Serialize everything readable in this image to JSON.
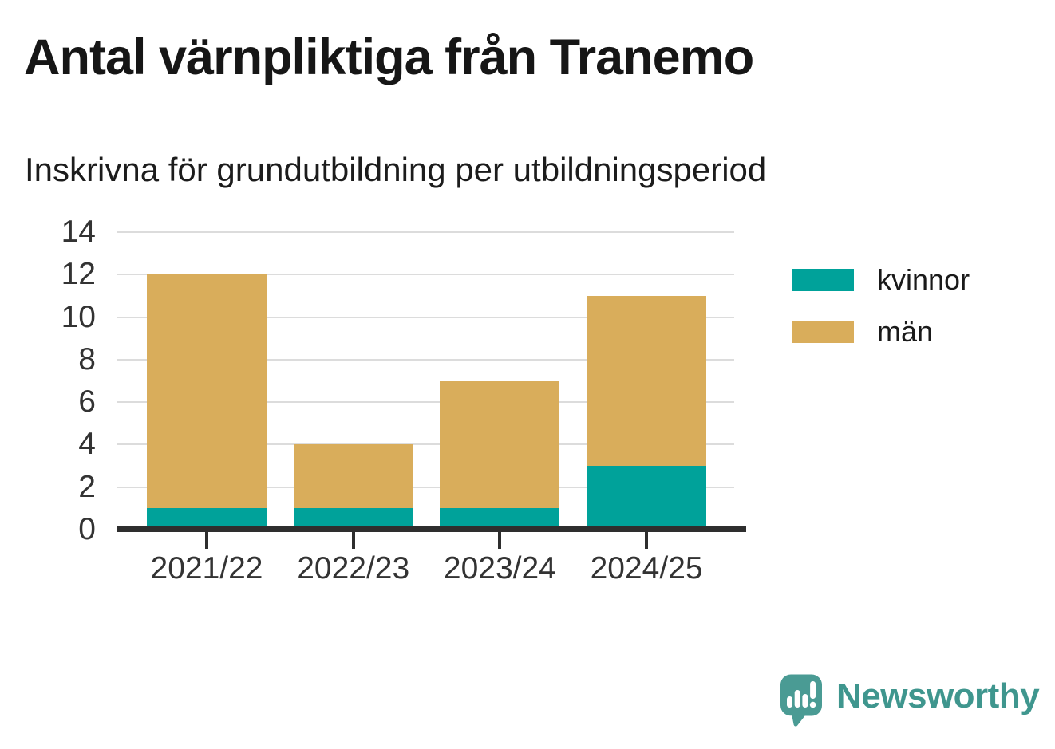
{
  "header": {
    "title": "Antal värnpliktiga från Tranemo",
    "subtitle": "Inskrivna för grundutbildning per utbildningsperiod"
  },
  "chart_data": {
    "type": "bar",
    "stacked": true,
    "title": "Antal värnpliktiga från Tranemo",
    "subtitle": "Inskrivna för grundutbildning per utbildningsperiod",
    "categories": [
      "2021/22",
      "2022/23",
      "2023/24",
      "2024/25"
    ],
    "series": [
      {
        "name": "kvinnor",
        "color": "#00a29a",
        "values": [
          1,
          1,
          1,
          3
        ]
      },
      {
        "name": "män",
        "color": "#d9ad5b",
        "values": [
          11,
          3,
          6,
          8
        ]
      }
    ],
    "totals": [
      12,
      4,
      7,
      11
    ],
    "xlabel": "",
    "ylabel": "",
    "ylim": [
      0,
      14
    ],
    "yticks": [
      0,
      2,
      4,
      6,
      8,
      10,
      12,
      14
    ],
    "grid": true,
    "gridline_color": "#dcdcdc",
    "axis_color": "#2e2e2e",
    "legend_position": "right"
  },
  "branding": {
    "logo_text": "Newsworthy",
    "logo_icon": "speech-bubble-bar-chart-exclamation",
    "logo_icon_color": "#4a9b94",
    "logo_text_color": "#3f968e"
  }
}
